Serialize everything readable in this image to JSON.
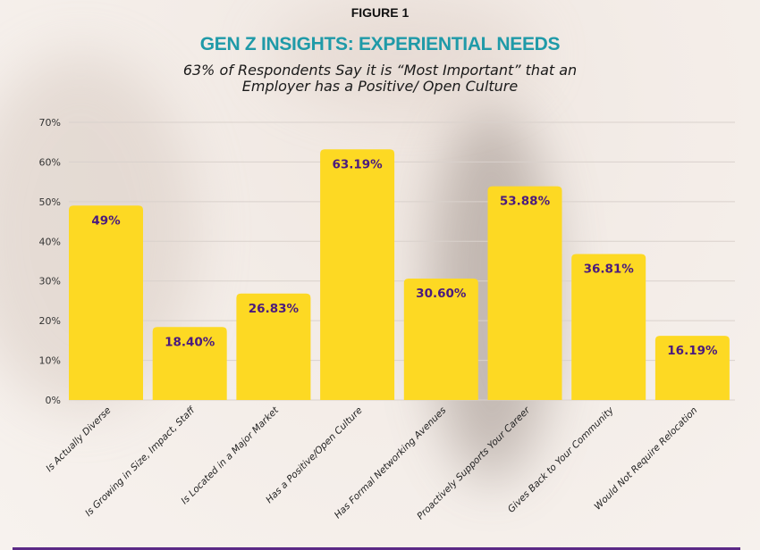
{
  "figure_label": "FIGURE 1",
  "chart_data": {
    "type": "bar",
    "title": "GEN Z INSIGHTS: EXPERIENTIAL NEEDS",
    "subtitle": "63% of Respondents Say it is “Most Important” that an Employer has a Positive/ Open Culture",
    "categories": [
      "Is Actually Diverse",
      "Is Growing in Size, Impact, Staff",
      "Is Located in a Major Market",
      "Has a Positive/Open Culture",
      "Has Formal Networking Avenues",
      "Proactively Supports Your Career",
      "Gives Back to Your Community",
      "Would Not Require Relocation"
    ],
    "values": [
      49,
      18.4,
      26.83,
      63.19,
      30.6,
      53.88,
      36.81,
      16.19
    ],
    "data_labels": [
      "49%",
      "18.40%",
      "26.83%",
      "63.19%",
      "30.60%",
      "53.88%",
      "36.81%",
      "16.19%"
    ],
    "ylim": [
      0,
      70
    ],
    "yticks": [
      "0%",
      "10%",
      "20%",
      "30%",
      "40%",
      "50%",
      "60%",
      "70%"
    ],
    "grid": true,
    "xlabel": "",
    "ylabel": "",
    "colors": {
      "bar": "#fdd923",
      "data_label": "#4a1a7e",
      "title": "#1f9aa8",
      "accent_line": "#5b2a86"
    }
  }
}
